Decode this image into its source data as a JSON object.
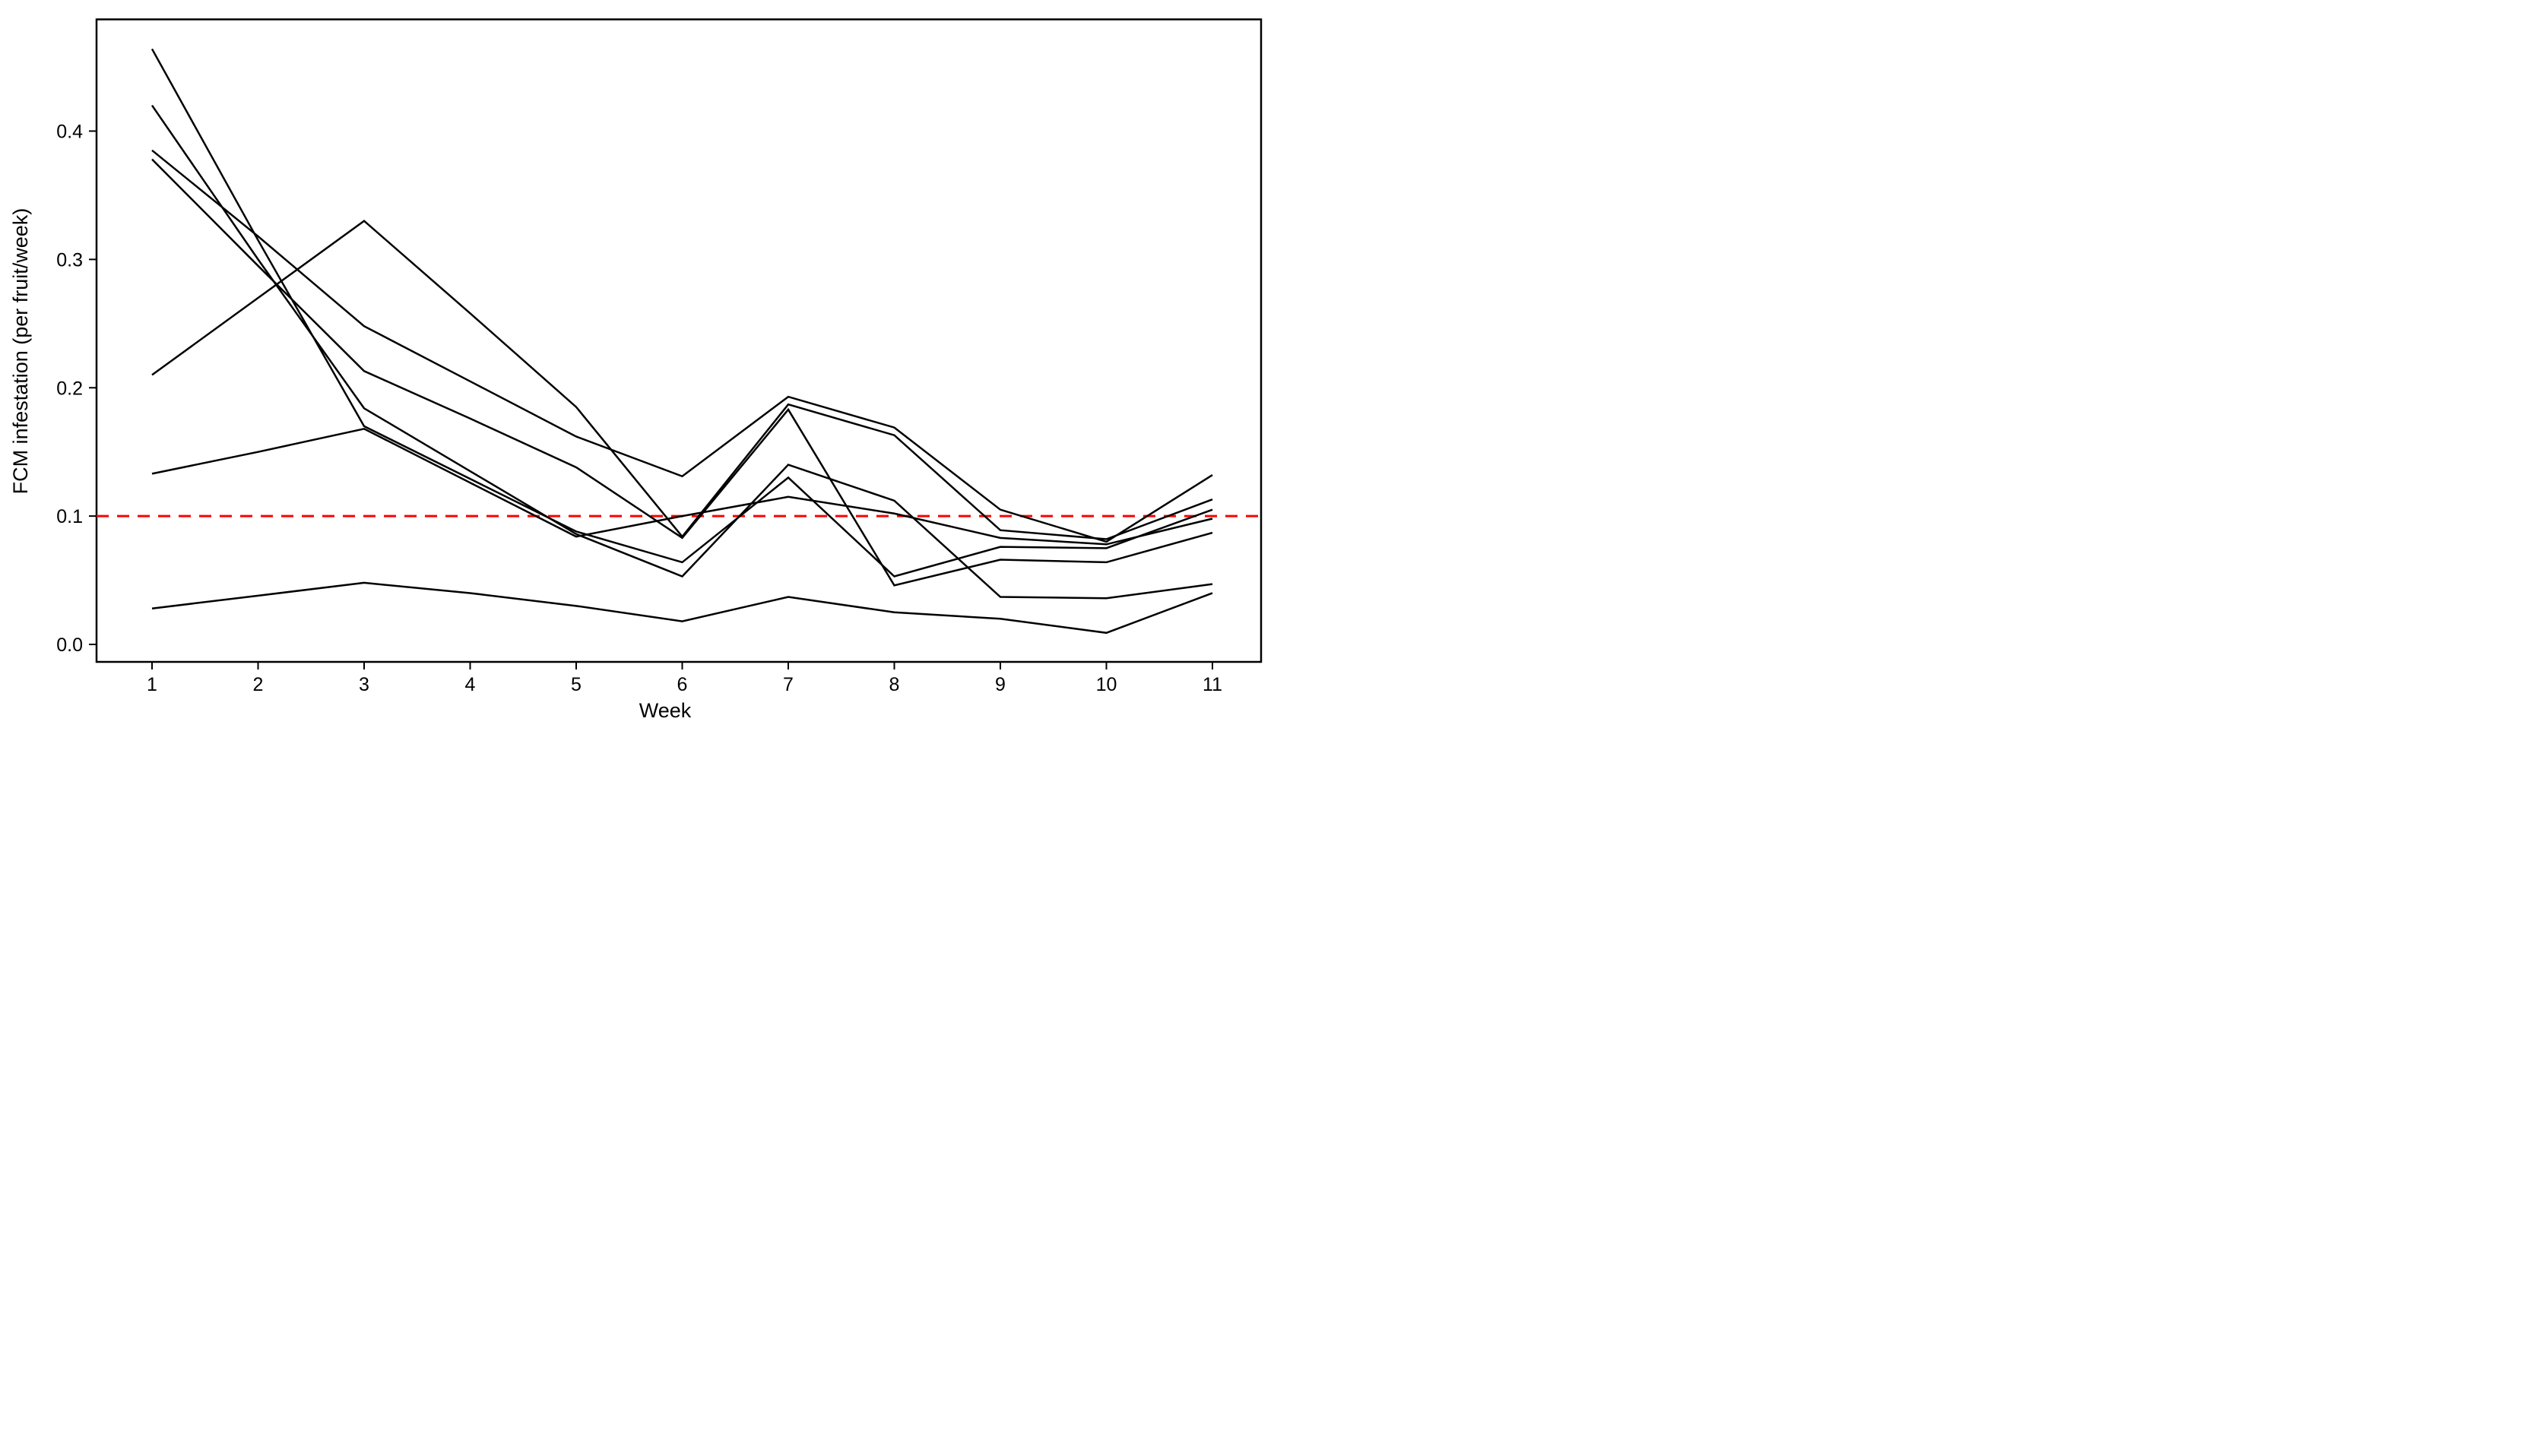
{
  "chart_data": {
    "type": "line",
    "title": "",
    "xlabel": "Week",
    "ylabel": "FCM infestation (per fruit/week)",
    "x": [
      1,
      2,
      3,
      4,
      5,
      6,
      7,
      8,
      9,
      10,
      11
    ],
    "x_tick_labels": [
      "1",
      "2",
      "3",
      "4",
      "5",
      "6",
      "7",
      "8",
      "9",
      "10",
      "11"
    ],
    "y_ticks": [
      0.0,
      0.1,
      0.2,
      0.3,
      0.4
    ],
    "y_tick_labels": [
      "0.0",
      "0.1",
      "0.2",
      "0.3",
      "0.4"
    ],
    "xlim": [
      0.47,
      11.55
    ],
    "ylim": [
      -0.014,
      0.487
    ],
    "grid": false,
    "legend": false,
    "line_color": "#000000",
    "background": "#ffffff",
    "panel_border_color": "#000000",
    "reference_line": {
      "y": 0.1,
      "color": "#ff0000",
      "style": "dashed"
    },
    "series": [
      {
        "name": "line1",
        "values": [
          0.464,
          0.315,
          0.17,
          0.129,
          0.088,
          0.064,
          0.13,
          0.053,
          0.076,
          0.075,
          0.105
        ]
      },
      {
        "name": "line2",
        "values": [
          0.42,
          0.3,
          0.184,
          0.135,
          0.086,
          0.053,
          0.14,
          0.112,
          0.037,
          0.036,
          0.047
        ]
      },
      {
        "name": "line3",
        "values": [
          0.385,
          0.318,
          0.248,
          0.205,
          0.162,
          0.131,
          0.193,
          0.169,
          0.105,
          0.08,
          0.132
        ]
      },
      {
        "name": "line4",
        "values": [
          0.378,
          0.295,
          0.213,
          0.176,
          0.138,
          0.083,
          0.183,
          0.046,
          0.066,
          0.064,
          0.087
        ]
      },
      {
        "name": "line5",
        "values": [
          0.21,
          0.27,
          0.33,
          0.258,
          0.185,
          0.084,
          0.187,
          0.163,
          0.089,
          0.082,
          0.113
        ]
      },
      {
        "name": "line6",
        "values": [
          0.133,
          0.15,
          0.168,
          0.126,
          0.084,
          0.1,
          0.115,
          0.102,
          0.083,
          0.078,
          0.098
        ]
      },
      {
        "name": "line7",
        "values": [
          0.028,
          0.038,
          0.048,
          0.04,
          0.03,
          0.018,
          0.037,
          0.025,
          0.02,
          0.009,
          0.04
        ]
      }
    ]
  }
}
